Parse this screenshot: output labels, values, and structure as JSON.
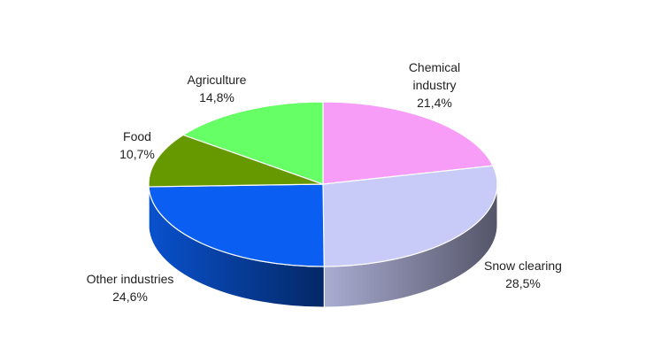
{
  "chart_data": {
    "type": "pie",
    "style": "3d",
    "legend": "none",
    "slices": [
      {
        "label_lines": [
          "Chemical",
          "industry"
        ],
        "value": 21.4,
        "value_text": "21,4%",
        "color": "#f79cf7"
      },
      {
        "label_lines": [
          "Snow clearing"
        ],
        "value": 28.5,
        "value_text": "28,5%",
        "color": "#c8caf7"
      },
      {
        "label_lines": [
          "Other industries"
        ],
        "value": 24.6,
        "value_text": "24,6%",
        "color": "#0a5ff2"
      },
      {
        "label_lines": [
          "Food"
        ],
        "value": 10.7,
        "value_text": "10,7%",
        "color": "#669900"
      },
      {
        "label_lines": [
          "Agriculture"
        ],
        "value": 14.8,
        "value_text": "14,8%",
        "color": "#66ff66"
      }
    ]
  }
}
